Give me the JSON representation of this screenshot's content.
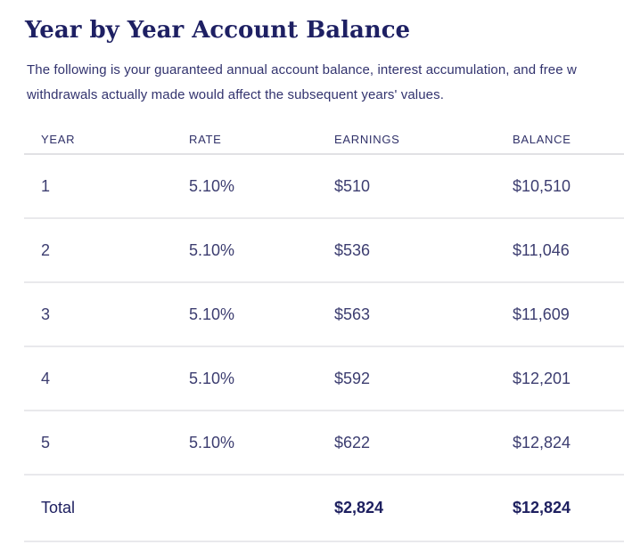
{
  "page": {
    "title": "Year by Year Account Balance",
    "description_line1": "The following is your guaranteed annual account balance, interest accumulation, and free w",
    "description_line2": "withdrawals actually made would affect the subsequent years' values."
  },
  "table": {
    "columns": {
      "year": "YEAR",
      "rate": "RATE",
      "earnings": "EARNINGS",
      "balance": "BALANCE"
    },
    "rows": [
      {
        "year": "1",
        "rate": "5.10%",
        "earnings": "$510",
        "balance": "$10,510"
      },
      {
        "year": "2",
        "rate": "5.10%",
        "earnings": "$536",
        "balance": "$11,046"
      },
      {
        "year": "3",
        "rate": "5.10%",
        "earnings": "$563",
        "balance": "$11,609"
      },
      {
        "year": "4",
        "rate": "5.10%",
        "earnings": "$592",
        "balance": "$12,201"
      },
      {
        "year": "5",
        "rate": "5.10%",
        "earnings": "$622",
        "balance": "$12,824"
      }
    ],
    "total": {
      "label": "Total",
      "rate": "",
      "earnings": "$2,824",
      "balance": "$12,824"
    }
  },
  "colors": {
    "title_text": "#1e2063",
    "body_text": "#32336e",
    "header_text": "#303169",
    "cell_text": "#3c3d70",
    "total_text": "#1e2060",
    "divider": "#e9e9ec",
    "header_divider": "#e1e1e4",
    "background": "#ffffff"
  }
}
